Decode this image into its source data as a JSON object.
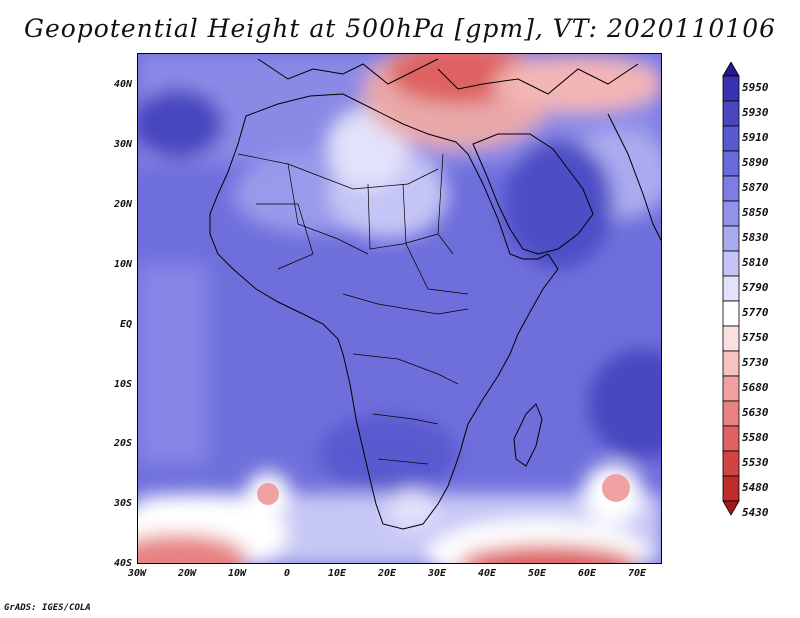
{
  "title": "Geopotential Height at 500hPa [gpm], VT: 2020110106",
  "credit": "GrADS: IGES/COLA",
  "y_labels": [
    "40N",
    "30N",
    "20N",
    "10N",
    "EQ",
    "10S",
    "20S",
    "30S",
    "40S"
  ],
  "x_labels": [
    "30W",
    "20W",
    "10W",
    "0",
    "10E",
    "20E",
    "30E",
    "40E",
    "50E",
    "60E",
    "70E"
  ],
  "colorbar_labels": [
    "5950",
    "5930",
    "5910",
    "5890",
    "5870",
    "5850",
    "5830",
    "5810",
    "5790",
    "5770",
    "5750",
    "5730",
    "5680",
    "5630",
    "5580",
    "5530",
    "5480",
    "5430"
  ],
  "colorbar_colors": [
    "#27188f",
    "#3a32b0",
    "#4a46c0",
    "#5a5ad0",
    "#6a6adb",
    "#7d7de3",
    "#9292ea",
    "#aaaaf0",
    "#c4c4f6",
    "#e2e2fb",
    "#ffffff",
    "#fbe0e0",
    "#f6c2c2",
    "#f0a2a2",
    "#e88282",
    "#de6262",
    "#d24444",
    "#bf2a2a",
    "#a01a1a"
  ],
  "chart_data": {
    "type": "heatmap",
    "title": "Geopotential Height at 500hPa [gpm], VT: 2020110106",
    "variable": "Geopotential height at 500 hPa",
    "units": "gpm",
    "valid_time": "2020110106",
    "lon_range": [
      -30,
      75
    ],
    "lat_range": [
      -40,
      45
    ],
    "levels": [
      5430,
      5480,
      5530,
      5580,
      5630,
      5680,
      5730,
      5750,
      5770,
      5790,
      5810,
      5830,
      5850,
      5870,
      5890,
      5910,
      5930,
      5950
    ]
  }
}
